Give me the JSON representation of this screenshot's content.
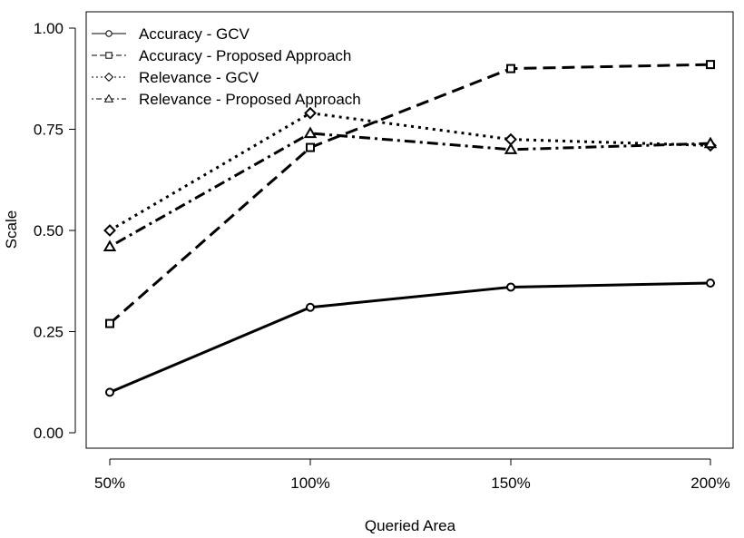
{
  "chart_data": {
    "type": "line",
    "xlabel": "Queried Area",
    "ylabel": "Scale",
    "categories": [
      "50%",
      "100%",
      "150%",
      "200%"
    ],
    "ylim": [
      0,
      1
    ],
    "yticks": [
      "0.00",
      "0.25",
      "0.50",
      "0.75",
      "1.00"
    ],
    "yticks_values": [
      0,
      0.25,
      0.5,
      0.75,
      1.0
    ],
    "legend_position": "top-left",
    "grid": false,
    "series": [
      {
        "name": "Accuracy - GCV",
        "values": [
          0.1,
          0.31,
          0.36,
          0.37
        ],
        "marker": "circle",
        "dash": "solid"
      },
      {
        "name": "Accuracy - Proposed Approach",
        "values": [
          0.27,
          0.705,
          0.9,
          0.91
        ],
        "marker": "square",
        "dash": "dashed"
      },
      {
        "name": "Relevance - GCV",
        "values": [
          0.5,
          0.79,
          0.725,
          0.71
        ],
        "marker": "diamond",
        "dash": "dotted"
      },
      {
        "name": "Relevance - Proposed Approach",
        "values": [
          0.46,
          0.74,
          0.7,
          0.715
        ],
        "marker": "triangle",
        "dash": "dotdash"
      }
    ]
  }
}
